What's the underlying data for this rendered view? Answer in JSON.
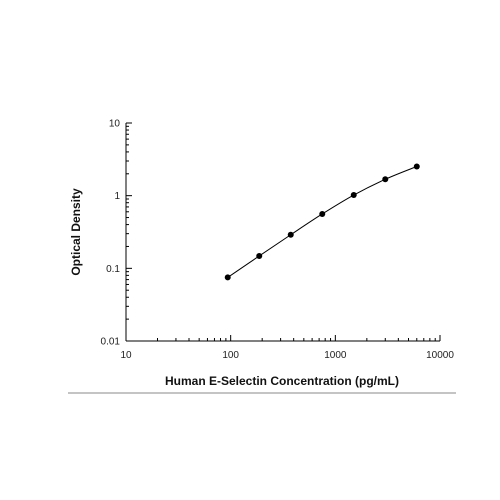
{
  "chart_data": {
    "type": "scatter",
    "xlabel": "Human E-Selectin Concentration (pg/mL)",
    "ylabel": "Optical Density",
    "x_scale": "log",
    "y_scale": "log",
    "xlim": [
      10,
      10000
    ],
    "ylim": [
      0.01,
      10
    ],
    "x_ticks": [
      "10",
      "100",
      "1000",
      "10000"
    ],
    "y_ticks": [
      "10",
      "1",
      "0.1",
      "0.01"
    ],
    "grid": false,
    "legend": false,
    "series": [
      {
        "x": [
          93.75,
          187.5,
          375,
          750,
          1500,
          3000,
          6000
        ],
        "y": [
          0.075,
          0.148,
          0.29,
          0.56,
          1.02,
          1.68,
          2.52
        ]
      }
    ]
  }
}
